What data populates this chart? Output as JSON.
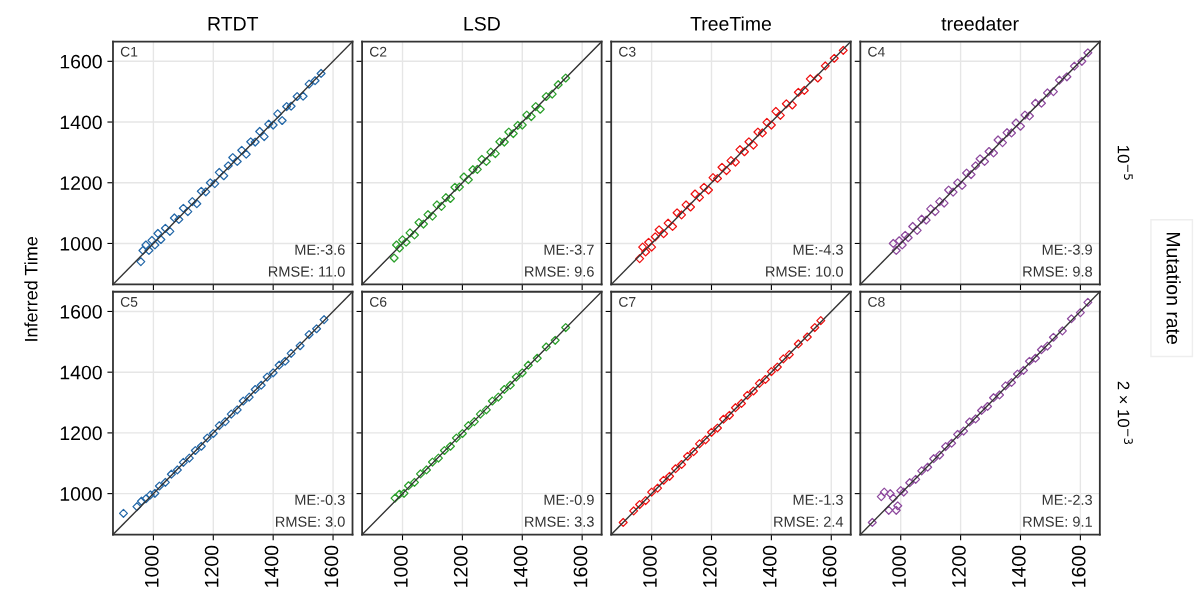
{
  "chart_data": [
    {
      "type": "scatter",
      "title": "RTDT",
      "ylabel": "Inferred Time",
      "xlim": [
        865,
        1665
      ],
      "ylim": [
        865,
        1665
      ],
      "xticks": [
        1000,
        1200,
        1400,
        1600
      ],
      "yticks": [
        1000,
        1200,
        1400,
        1600
      ],
      "grid": true,
      "marker": "diamond",
      "tick_labels": "y",
      "annotations": [
        "C1",
        "ME:-3.6",
        "RMSE: 11.0"
      ],
      "series": [
        {
          "color": "#2468a8",
          "x": [
            958,
            965,
            975,
            985,
            995,
            1005,
            1015,
            1025,
            1040,
            1055,
            1070,
            1085,
            1100,
            1115,
            1130,
            1145,
            1160,
            1175,
            1190,
            1205,
            1220,
            1235,
            1250,
            1265,
            1280,
            1295,
            1310,
            1325,
            1340,
            1355,
            1370,
            1385,
            1400,
            1415,
            1430,
            1445,
            1460,
            1480,
            1500,
            1520,
            1540,
            1560
          ],
          "values": [
            940,
            977,
            995,
            977,
            1010,
            995,
            1033,
            1013,
            1050,
            1040,
            1084,
            1079,
            1116,
            1105,
            1138,
            1131,
            1172,
            1170,
            1200,
            1197,
            1234,
            1223,
            1256,
            1283,
            1270,
            1307,
            1294,
            1335,
            1334,
            1369,
            1352,
            1393,
            1390,
            1427,
            1405,
            1451,
            1452,
            1484,
            1485,
            1525,
            1536,
            1560
          ]
        },
        {
          "type": "line",
          "color": "#333333",
          "marker": "none",
          "x": [
            865,
            1665
          ],
          "values": [
            865,
            1665
          ]
        }
      ]
    },
    {
      "type": "scatter",
      "title": "LSD",
      "xlim": [
        865,
        1665
      ],
      "ylim": [
        865,
        1665
      ],
      "xticks": [
        1000,
        1200,
        1400,
        1600
      ],
      "yticks": [
        1000,
        1200,
        1400,
        1600
      ],
      "grid": true,
      "marker": "diamond",
      "tick_labels": false,
      "annotations": [
        "C2",
        "ME:-3.7",
        "RMSE: 9.6"
      ],
      "series": [
        {
          "color": "#2ca02c",
          "x": [
            972,
            980,
            990,
            1000,
            1012,
            1025,
            1040,
            1055,
            1070,
            1085,
            1100,
            1115,
            1130,
            1145,
            1160,
            1175,
            1190,
            1205,
            1220,
            1235,
            1250,
            1265,
            1280,
            1295,
            1310,
            1325,
            1340,
            1355,
            1370,
            1385,
            1400,
            1415,
            1430,
            1445,
            1460,
            1480,
            1500,
            1520,
            1545
          ],
          "values": [
            952,
            995,
            985,
            1012,
            1004,
            1035,
            1028,
            1069,
            1064,
            1095,
            1090,
            1127,
            1122,
            1151,
            1148,
            1185,
            1186,
            1219,
            1210,
            1243,
            1244,
            1277,
            1270,
            1301,
            1296,
            1335,
            1334,
            1367,
            1362,
            1389,
            1390,
            1423,
            1418,
            1451,
            1442,
            1484,
            1492,
            1523,
            1545
          ]
        },
        {
          "type": "line",
          "color": "#333333",
          "marker": "none",
          "x": [
            865,
            1665
          ],
          "values": [
            865,
            1665
          ]
        }
      ]
    },
    {
      "type": "scatter",
      "title": "TreeTime",
      "xlim": [
        865,
        1665
      ],
      "ylim": [
        865,
        1665
      ],
      "xticks": [
        1000,
        1200,
        1400,
        1600
      ],
      "yticks": [
        1000,
        1200,
        1400,
        1600
      ],
      "grid": true,
      "marker": "diamond",
      "tick_labels": false,
      "annotations": [
        "C3",
        "ME:-4.3",
        "RMSE: 10.0"
      ],
      "series": [
        {
          "color": "#ee1111",
          "x": [
            960,
            970,
            980,
            990,
            1000,
            1012,
            1025,
            1040,
            1055,
            1070,
            1085,
            1100,
            1115,
            1130,
            1145,
            1160,
            1175,
            1190,
            1205,
            1220,
            1235,
            1250,
            1265,
            1280,
            1295,
            1310,
            1325,
            1340,
            1355,
            1370,
            1385,
            1400,
            1415,
            1430,
            1450,
            1470,
            1490,
            1510,
            1530,
            1555,
            1580,
            1610,
            1640
          ],
          "values": [
            950,
            988,
            972,
            1004,
            988,
            1022,
            1045,
            1032,
            1067,
            1056,
            1101,
            1094,
            1127,
            1120,
            1163,
            1152,
            1185,
            1176,
            1217,
            1214,
            1251,
            1240,
            1273,
            1268,
            1309,
            1302,
            1335,
            1324,
            1367,
            1364,
            1399,
            1390,
            1435,
            1422,
            1460,
            1456,
            1498,
            1504,
            1542,
            1545,
            1585,
            1610,
            1636
          ]
        },
        {
          "type": "line",
          "color": "#333333",
          "marker": "none",
          "x": [
            865,
            1665
          ],
          "values": [
            865,
            1665
          ]
        }
      ]
    },
    {
      "type": "scatter",
      "title": "treedater",
      "xlim": [
        865,
        1665
      ],
      "ylim": [
        865,
        1665
      ],
      "xticks": [
        1000,
        1200,
        1400,
        1600
      ],
      "yticks": [
        1000,
        1200,
        1400,
        1600
      ],
      "grid": true,
      "marker": "diamond",
      "tick_labels": false,
      "annotations": [
        "C4",
        "ME:-3.9",
        "RMSE: 9.8",
        "10$^{−5}$",
        "Mutation rate"
      ],
      "series": [
        {
          "color": "#8e4a9e",
          "x": [
            975,
            985,
            995,
            1005,
            1015,
            1025,
            1040,
            1055,
            1070,
            1085,
            1100,
            1115,
            1130,
            1145,
            1160,
            1175,
            1190,
            1205,
            1220,
            1235,
            1250,
            1265,
            1280,
            1295,
            1310,
            1325,
            1340,
            1355,
            1370,
            1385,
            1400,
            1415,
            1430,
            1450,
            1470,
            1490,
            1510,
            1530,
            1555,
            1580,
            1605,
            1625
          ],
          "values": [
            1000,
            977,
            1009,
            995,
            1027,
            1019,
            1056,
            1043,
            1080,
            1077,
            1114,
            1105,
            1138,
            1133,
            1176,
            1169,
            1200,
            1191,
            1232,
            1227,
            1256,
            1279,
            1270,
            1303,
            1298,
            1341,
            1332,
            1365,
            1364,
            1397,
            1386,
            1423,
            1420,
            1462,
            1462,
            1496,
            1500,
            1538,
            1549,
            1584,
            1600,
            1628
          ]
        },
        {
          "type": "line",
          "color": "#333333",
          "marker": "none",
          "x": [
            865,
            1665
          ],
          "values": [
            865,
            1665
          ]
        }
      ]
    },
    {
      "type": "scatter",
      "xlim": [
        865,
        1665
      ],
      "ylim": [
        865,
        1665
      ],
      "xticks": [
        1000,
        1200,
        1400,
        1600
      ],
      "yticks": [
        1000,
        1200,
        1400,
        1600
      ],
      "grid": true,
      "marker": "diamond",
      "annotations": [
        "C5",
        "ME:-0.3",
        "RMSE: 3.0"
      ],
      "series": [
        {
          "color": "#2468a8",
          "x": [
            900,
            945,
            960,
            975,
            990,
            1005,
            1020,
            1040,
            1060,
            1080,
            1100,
            1120,
            1140,
            1160,
            1180,
            1200,
            1220,
            1240,
            1260,
            1280,
            1300,
            1320,
            1340,
            1360,
            1380,
            1400,
            1420,
            1440,
            1460,
            1490,
            1520,
            1545,
            1570
          ],
          "values": [
            935,
            957,
            975,
            983,
            996,
            1001,
            1025,
            1037,
            1064,
            1078,
            1103,
            1117,
            1142,
            1156,
            1183,
            1198,
            1224,
            1237,
            1262,
            1276,
            1305,
            1318,
            1343,
            1357,
            1384,
            1398,
            1423,
            1436,
            1462,
            1487,
            1524,
            1543,
            1573
          ]
        },
        {
          "type": "line",
          "color": "#333333",
          "marker": "none",
          "x": [
            865,
            1665
          ],
          "values": [
            865,
            1665
          ]
        }
      ]
    },
    {
      "type": "scatter",
      "xlim": [
        865,
        1665
      ],
      "ylim": [
        865,
        1665
      ],
      "xticks": [
        1000,
        1200,
        1400,
        1600
      ],
      "yticks": [
        1000,
        1200,
        1400,
        1600
      ],
      "grid": true,
      "marker": "diamond",
      "tick_labels": "x",
      "annotations": [
        "C6",
        "ME:-0.9",
        "RMSE: 3.3"
      ],
      "series": [
        {
          "color": "#2ca02c",
          "x": [
            975,
            990,
            1005,
            1020,
            1040,
            1060,
            1080,
            1100,
            1120,
            1140,
            1160,
            1180,
            1200,
            1220,
            1240,
            1260,
            1280,
            1300,
            1320,
            1340,
            1360,
            1380,
            1400,
            1420,
            1450,
            1480,
            1510,
            1545
          ],
          "values": [
            985,
            998,
            1001,
            1026,
            1037,
            1065,
            1078,
            1104,
            1117,
            1142,
            1156,
            1183,
            1198,
            1224,
            1237,
            1262,
            1276,
            1305,
            1318,
            1343,
            1357,
            1384,
            1398,
            1423,
            1446,
            1483,
            1505,
            1547
          ]
        },
        {
          "type": "line",
          "color": "#333333",
          "marker": "none",
          "x": [
            865,
            1665
          ],
          "values": [
            865,
            1665
          ]
        }
      ]
    },
    {
      "type": "scatter",
      "xlim": [
        865,
        1665
      ],
      "ylim": [
        865,
        1665
      ],
      "xticks": [
        1000,
        1200,
        1400,
        1600
      ],
      "yticks": [
        1000,
        1200,
        1400,
        1600
      ],
      "grid": true,
      "marker": "diamond",
      "tick_labels": "x",
      "annotations": [
        "C7",
        "ME:-1.3",
        "RMSE: 2.4"
      ],
      "series": [
        {
          "color": "#ee1111",
          "x": [
            905,
            940,
            960,
            980,
            1000,
            1020,
            1040,
            1060,
            1080,
            1100,
            1120,
            1140,
            1160,
            1180,
            1200,
            1220,
            1240,
            1260,
            1280,
            1300,
            1320,
            1340,
            1360,
            1380,
            1400,
            1420,
            1440,
            1460,
            1490,
            1520,
            1545,
            1565
          ],
          "values": [
            905,
            943,
            964,
            977,
            1005,
            1018,
            1044,
            1057,
            1082,
            1096,
            1123,
            1138,
            1164,
            1177,
            1202,
            1216,
            1245,
            1258,
            1283,
            1297,
            1324,
            1338,
            1363,
            1376,
            1402,
            1417,
            1444,
            1458,
            1493,
            1516,
            1547,
            1570
          ]
        },
        {
          "type": "line",
          "color": "#333333",
          "marker": "none",
          "x": [
            865,
            1665
          ],
          "values": [
            865,
            1665
          ]
        }
      ]
    },
    {
      "type": "scatter",
      "xlim": [
        865,
        1665
      ],
      "ylim": [
        865,
        1665
      ],
      "xticks": [
        1000,
        1200,
        1400,
        1600
      ],
      "yticks": [
        1000,
        1200,
        1400,
        1600
      ],
      "grid": true,
      "marker": "diamond",
      "tick_labels": "x",
      "annotations": [
        "C8",
        "ME:-2.3",
        "RMSE: 9.1",
        "2 × 10$^{−3}$"
      ],
      "series": [
        {
          "color": "#8e4a9e",
          "x": [
            905,
            935,
            945,
            960,
            965,
            975,
            985,
            990,
            1000,
            1010,
            1030,
            1050,
            1070,
            1090,
            1110,
            1130,
            1150,
            1170,
            1190,
            1210,
            1230,
            1250,
            1270,
            1290,
            1310,
            1330,
            1350,
            1370,
            1390,
            1410,
            1430,
            1450,
            1470,
            1490,
            1510,
            1540,
            1570,
            1600,
            1625
          ],
          "values": [
            905,
            990,
            1005,
            945,
            1000,
            985,
            945,
            960,
            1010,
            1005,
            1036,
            1047,
            1075,
            1087,
            1115,
            1127,
            1155,
            1166,
            1195,
            1206,
            1236,
            1246,
            1274,
            1287,
            1316,
            1325,
            1355,
            1366,
            1394,
            1406,
            1436,
            1446,
            1474,
            1486,
            1515,
            1536,
            1576,
            1596,
            1630
          ]
        },
        {
          "type": "line",
          "color": "#333333",
          "marker": "none",
          "x": [
            865,
            1665
          ],
          "values": [
            865,
            1665
          ]
        }
      ]
    }
  ]
}
